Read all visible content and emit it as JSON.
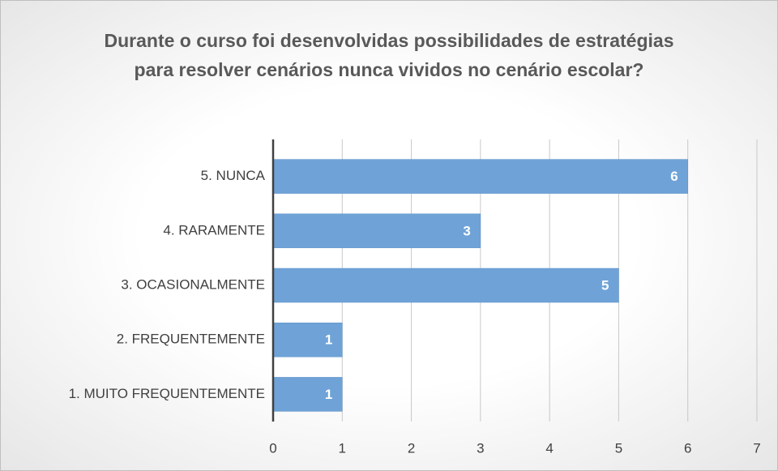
{
  "chart_data": {
    "type": "bar",
    "title": "Durante o curso foi desenvolvidas possibilidades de estratégias para resolver cenários nunca vividos no cenário escolar?",
    "categories": [
      "5. NUNCA",
      "4. RARAMENTE",
      "3. OCASIONALMENTE",
      "2. FREQUENTEMENTE",
      "1. MUITO FREQUENTEMENTE"
    ],
    "values": [
      6,
      3,
      5,
      1,
      1
    ],
    "color": "#6fa3d8",
    "xlim": [
      0,
      7
    ],
    "xticks": [
      0,
      1,
      2,
      3,
      4,
      5,
      6,
      7
    ],
    "grid": true
  }
}
